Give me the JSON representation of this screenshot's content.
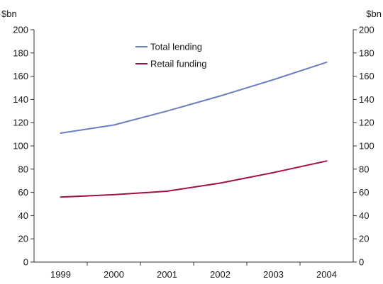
{
  "chart_data": {
    "type": "line",
    "title": "",
    "xlabel": "",
    "ylabel_left": "$bn",
    "ylabel_right": "$bn",
    "categories": [
      "1999",
      "2000",
      "2001",
      "2002",
      "2003",
      "2004"
    ],
    "ylim": [
      0,
      200
    ],
    "yticks": [
      "0",
      "20",
      "40",
      "60",
      "80",
      "100",
      "120",
      "140",
      "160",
      "180",
      "200"
    ],
    "grid": false,
    "legend_position": "top-center",
    "series": [
      {
        "name": "Total lending",
        "color": "#6b7fbf",
        "values": [
          111,
          118,
          130,
          143,
          157,
          172
        ]
      },
      {
        "name": "Retail funding",
        "color": "#a3103e",
        "values": [
          56,
          58,
          61,
          68,
          77,
          87
        ]
      }
    ]
  }
}
